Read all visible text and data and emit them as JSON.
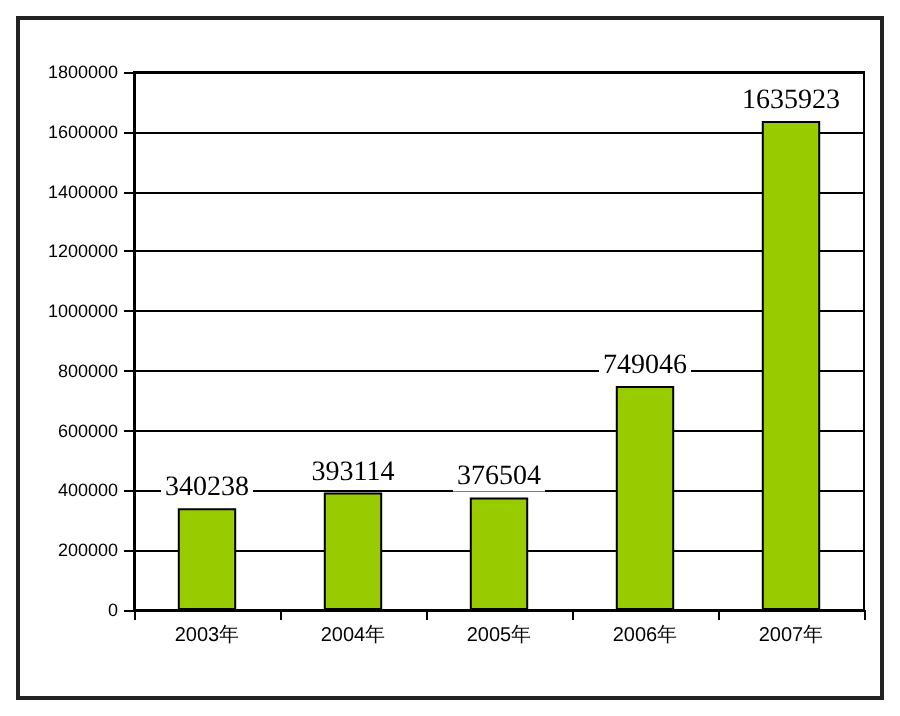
{
  "chart_data": {
    "type": "bar",
    "categories": [
      "2003年",
      "2004年",
      "2005年",
      "2006年",
      "2007年"
    ],
    "values": [
      340238,
      393114,
      376504,
      749046,
      1635923
    ],
    "color": "#99cc00",
    "ylim": [
      0,
      1800000
    ],
    "yticks": [
      0,
      200000,
      400000,
      600000,
      800000,
      1000000,
      1200000,
      1400000,
      1600000,
      1800000
    ],
    "grid": "y",
    "data_labels": true
  }
}
